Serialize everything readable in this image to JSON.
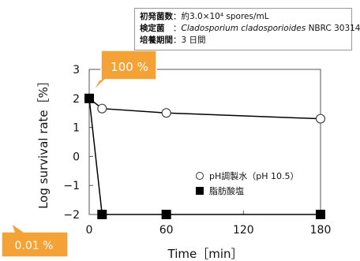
{
  "info": {
    "line1_label": "初発菌数",
    "line1_value": "約3.0×10⁴ spores/mL",
    "line2_label": "検定菌",
    "line2_value_italic": "Cladosporium cladosporioides",
    "line2_value_suffix": "NBRC 30314",
    "line3_label": "培養期間",
    "line3_value": "3 日間"
  },
  "callouts": {
    "top": "100 %",
    "bottom": "0.01 %",
    "color": "#f4a236"
  },
  "chart_data": {
    "type": "line",
    "xlabel": "Time［min］",
    "ylabel": "Log survival rate［%］",
    "xlim": [
      0,
      180
    ],
    "ylim": [
      -2,
      3
    ],
    "x_ticks": [
      0,
      60,
      120,
      180
    ],
    "y_ticks": [
      3,
      2,
      1,
      0,
      -1,
      -2
    ],
    "y_tick_labels": [
      "3",
      "2",
      "1",
      "0",
      "−1",
      "−2"
    ],
    "grid": false,
    "legend_position": "bottom-right",
    "series": [
      {
        "name": "pH調製水（pH 10.5）",
        "marker": "open-circle",
        "x": [
          0,
          10,
          60,
          180
        ],
        "y": [
          2,
          1.65,
          1.5,
          1.3
        ]
      },
      {
        "name": "脂肪酸塩",
        "marker": "filled-square",
        "x": [
          0,
          10,
          60,
          180
        ],
        "y": [
          2,
          -2,
          -2,
          -2
        ]
      }
    ]
  }
}
